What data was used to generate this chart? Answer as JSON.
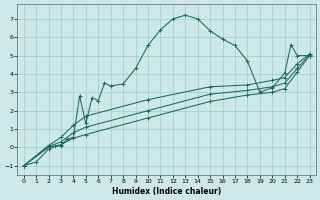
{
  "xlabel": "Humidex (Indice chaleur)",
  "xlim": [
    -0.5,
    23.5
  ],
  "ylim": [
    -1.5,
    7.8
  ],
  "xticks": [
    0,
    1,
    2,
    3,
    4,
    5,
    6,
    7,
    8,
    9,
    10,
    11,
    12,
    13,
    14,
    15,
    16,
    17,
    18,
    19,
    20,
    21,
    22,
    23
  ],
  "yticks": [
    -1,
    0,
    1,
    2,
    3,
    4,
    5,
    6,
    7
  ],
  "bg_color": "#cce8e8",
  "line_color": "#1a6b5a",
  "grid_color": "#9ecece",
  "line1_x": [
    0,
    1,
    2,
    2.5,
    3,
    3.5,
    4,
    4.5,
    5,
    5.5,
    6,
    6.5,
    7,
    8,
    9,
    10,
    11,
    12,
    13,
    14,
    15,
    16,
    17,
    18,
    19,
    20,
    21,
    21.5,
    22,
    23
  ],
  "line1_y": [
    -1.0,
    -0.8,
    -0.1,
    0.05,
    0.1,
    0.45,
    0.55,
    2.8,
    1.3,
    2.7,
    2.55,
    3.5,
    3.35,
    3.45,
    4.3,
    5.55,
    6.4,
    7.0,
    7.2,
    7.0,
    6.35,
    5.9,
    5.55,
    4.7,
    3.0,
    3.25,
    4.05,
    5.6,
    5.0,
    5.0
  ],
  "line2_x": [
    0,
    2,
    3,
    4,
    5,
    10,
    15,
    18,
    20,
    21,
    22,
    23
  ],
  "line2_y": [
    -1.0,
    0.0,
    0.15,
    0.5,
    0.7,
    1.6,
    2.5,
    2.85,
    3.0,
    3.2,
    4.1,
    5.0
  ],
  "line3_x": [
    0,
    2,
    3,
    4,
    5,
    10,
    15,
    18,
    20,
    21,
    22,
    23
  ],
  "line3_y": [
    -1.0,
    0.05,
    0.3,
    0.8,
    1.1,
    2.0,
    2.9,
    3.1,
    3.3,
    3.5,
    4.3,
    5.05
  ],
  "line4_x": [
    0,
    2,
    3,
    4,
    5,
    10,
    15,
    18,
    20,
    21,
    22,
    23
  ],
  "line4_y": [
    -1.0,
    0.1,
    0.55,
    1.2,
    1.7,
    2.6,
    3.3,
    3.4,
    3.65,
    3.8,
    4.55,
    5.1
  ]
}
